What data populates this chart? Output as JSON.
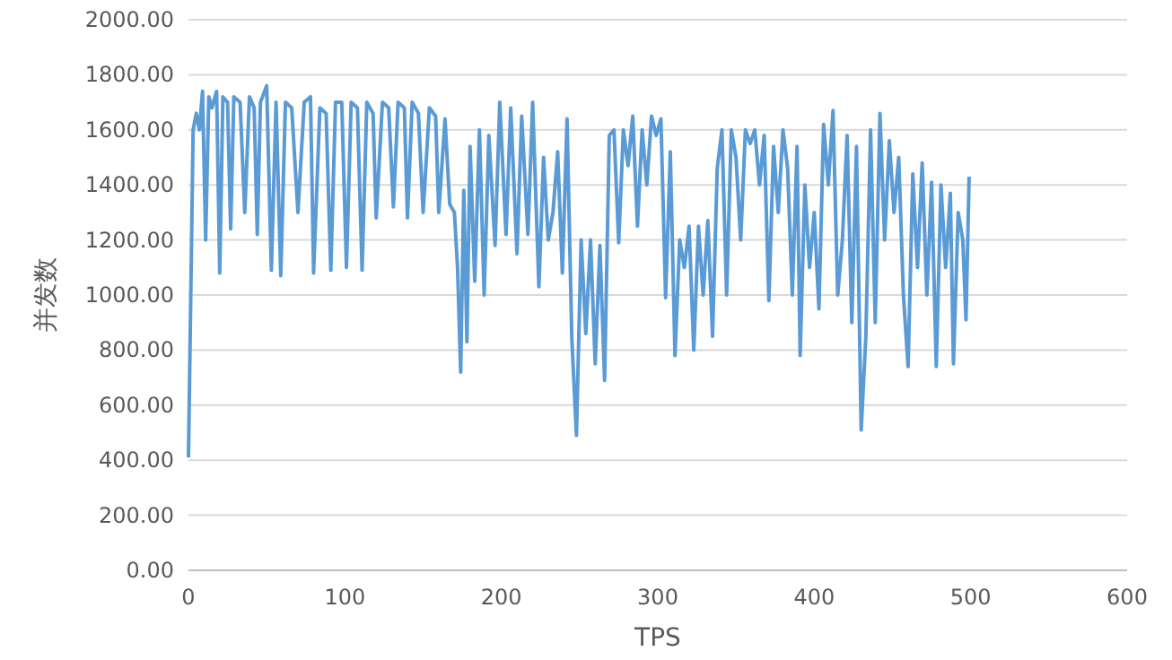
{
  "chart_data": {
    "type": "line",
    "xlabel": "TPS",
    "ylabel": "并发数",
    "grid": "y",
    "marker": "none",
    "line_style": "solid",
    "xlim": [
      0,
      600
    ],
    "xticks": [
      0,
      100,
      200,
      300,
      400,
      500,
      600
    ],
    "ylim": [
      0,
      2000
    ],
    "yticks": [
      {
        "value": 0,
        "label": "0.00"
      },
      {
        "value": 200,
        "label": "200.00"
      },
      {
        "value": 400,
        "label": "400.00"
      },
      {
        "value": 600,
        "label": "600.00"
      },
      {
        "value": 800,
        "label": "800.00"
      },
      {
        "value": 1000,
        "label": "1000.00"
      },
      {
        "value": 1200,
        "label": "1200.00"
      },
      {
        "value": 1400,
        "label": "1400.00"
      },
      {
        "value": 1600,
        "label": "1600.00"
      },
      {
        "value": 1800,
        "label": "1800.00"
      },
      {
        "value": 2000,
        "label": "2000.00"
      }
    ],
    "series": [
      {
        "color": "#5b9bd5",
        "x": [
          0,
          3,
          5,
          7,
          9,
          11,
          13,
          15,
          18,
          20,
          22,
          25,
          27,
          29,
          33,
          36,
          39,
          42,
          44,
          46,
          50,
          53,
          56,
          59,
          62,
          66,
          70,
          74,
          78,
          80,
          84,
          88,
          91,
          94,
          98,
          101,
          104,
          108,
          111,
          114,
          118,
          120,
          124,
          128,
          131,
          134,
          138,
          140,
          143,
          147,
          150,
          154,
          158,
          160,
          164,
          167,
          170,
          172,
          174,
          176,
          178,
          180,
          183,
          186,
          189,
          192,
          196,
          199,
          203,
          206,
          210,
          213,
          217,
          220,
          224,
          227,
          230,
          233,
          236,
          239,
          242,
          245,
          248,
          251,
          254,
          257,
          260,
          263,
          266,
          269,
          272,
          275,
          278,
          281,
          284,
          287,
          290,
          293,
          296,
          299,
          302,
          305,
          308,
          311,
          314,
          317,
          320,
          323,
          326,
          329,
          332,
          335,
          338,
          341,
          344,
          347,
          350,
          353,
          356,
          359,
          362,
          365,
          368,
          371,
          374,
          377,
          380,
          383,
          386,
          389,
          391,
          394,
          397,
          400,
          403,
          406,
          409,
          412,
          415,
          418,
          421,
          424,
          427,
          430,
          433,
          436,
          439,
          442,
          445,
          448,
          451,
          454,
          457,
          460,
          463,
          466,
          469,
          472,
          475,
          478,
          481,
          484,
          487,
          489,
          492,
          495,
          497,
          499
        ],
        "values": [
          410,
          1600,
          1660,
          1600,
          1740,
          1200,
          1720,
          1680,
          1740,
          1080,
          1720,
          1700,
          1240,
          1720,
          1700,
          1300,
          1720,
          1680,
          1220,
          1700,
          1760,
          1090,
          1700,
          1070,
          1700,
          1680,
          1300,
          1700,
          1720,
          1080,
          1680,
          1660,
          1090,
          1700,
          1700,
          1100,
          1700,
          1680,
          1090,
          1700,
          1660,
          1280,
          1700,
          1680,
          1320,
          1700,
          1680,
          1280,
          1700,
          1660,
          1300,
          1680,
          1650,
          1300,
          1640,
          1330,
          1300,
          1100,
          720,
          1380,
          830,
          1540,
          1050,
          1600,
          1000,
          1580,
          1180,
          1700,
          1220,
          1680,
          1150,
          1650,
          1220,
          1700,
          1030,
          1500,
          1200,
          1300,
          1520,
          1080,
          1640,
          850,
          490,
          1200,
          860,
          1200,
          750,
          1180,
          690,
          1580,
          1600,
          1190,
          1600,
          1470,
          1650,
          1250,
          1600,
          1400,
          1650,
          1580,
          1640,
          990,
          1520,
          780,
          1200,
          1100,
          1250,
          800,
          1250,
          1000,
          1270,
          850,
          1460,
          1600,
          1000,
          1600,
          1500,
          1200,
          1600,
          1550,
          1600,
          1400,
          1580,
          980,
          1540,
          1300,
          1600,
          1460,
          1000,
          1540,
          780,
          1400,
          1100,
          1300,
          950,
          1620,
          1400,
          1670,
          1000,
          1200,
          1580,
          900,
          1540,
          510,
          850,
          1600,
          900,
          1660,
          1200,
          1560,
          1300,
          1500,
          1000,
          740,
          1440,
          1100,
          1480,
          1000,
          1410,
          740,
          1400,
          1100,
          1370,
          750,
          1300,
          1200,
          910,
          1430
        ]
      }
    ]
  }
}
